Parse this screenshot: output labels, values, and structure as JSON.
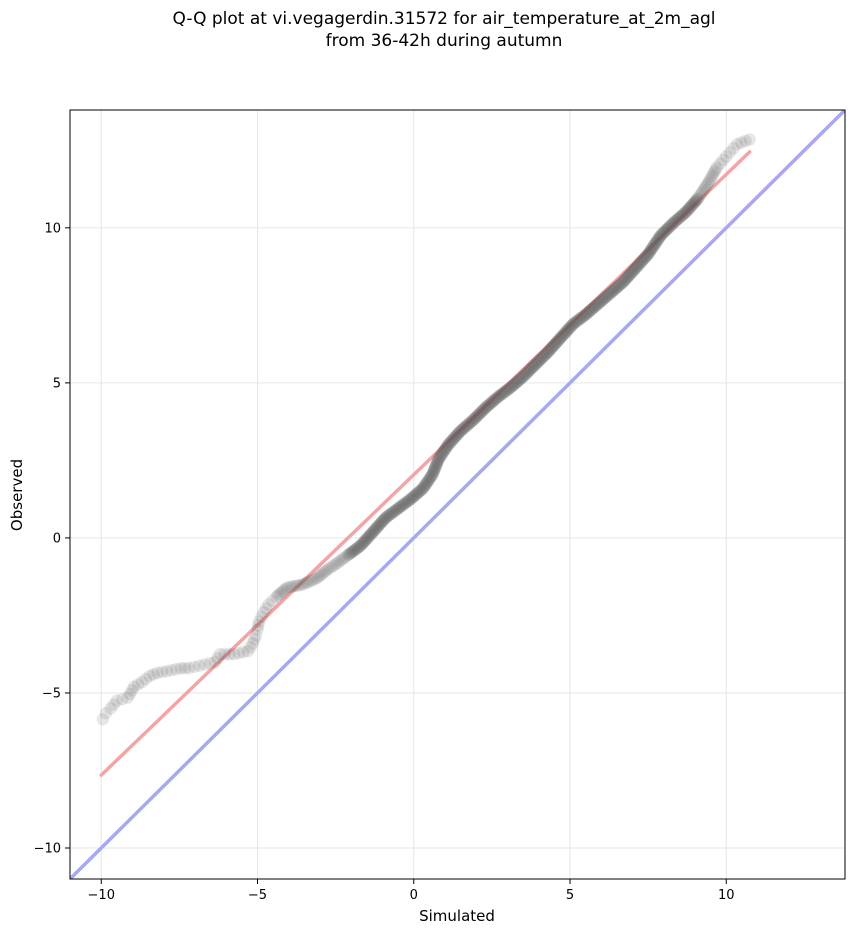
{
  "chart_data": {
    "type": "scatter",
    "title_lines": [
      "Q-Q plot at vi.vegagerdin.31572 for air_temperature_at_2m_agl",
      "from 36-42h during autumn"
    ],
    "xlabel": "Simulated",
    "ylabel": "Observed",
    "xlim": [
      -11,
      13.8
    ],
    "ylim": [
      -11,
      13.8
    ],
    "xticks": [
      {
        "value": -10,
        "label": "−10"
      },
      {
        "value": -5,
        "label": "−5"
      },
      {
        "value": 0,
        "label": "0"
      },
      {
        "value": 5,
        "label": "5"
      },
      {
        "value": 10,
        "label": "10"
      }
    ],
    "yticks": [
      {
        "value": -10,
        "label": "−10"
      },
      {
        "value": -5,
        "label": "−5"
      },
      {
        "value": 0,
        "label": "0"
      },
      {
        "value": 5,
        "label": "5"
      },
      {
        "value": 10,
        "label": "10"
      }
    ],
    "grid": true,
    "identity_line": {
      "from": [
        -11,
        -11
      ],
      "to": [
        13.8,
        13.8
      ],
      "color": "#a8a8f2"
    },
    "fit_line": {
      "from": [
        -10,
        -7.65
      ],
      "to": [
        10.75,
        12.45
      ],
      "color": "#f4a4a4"
    },
    "point_color": "#555555",
    "quantile_points": [
      [
        -9.95,
        -5.85
      ],
      [
        -9.85,
        -5.65
      ],
      [
        -9.7,
        -5.5
      ],
      [
        -9.5,
        -5.25
      ],
      [
        -9.15,
        -5.15
      ],
      [
        -8.95,
        -4.8
      ],
      [
        -8.7,
        -4.65
      ],
      [
        -8.45,
        -4.45
      ],
      [
        -8.2,
        -4.35
      ],
      [
        -7.9,
        -4.3
      ],
      [
        -7.45,
        -4.2
      ],
      [
        -7.2,
        -4.2
      ],
      [
        -6.35,
        -4.0
      ],
      [
        -6.2,
        -3.75
      ],
      [
        -5.75,
        -3.75
      ],
      [
        -5.3,
        -3.65
      ],
      [
        -5.15,
        -3.4
      ],
      [
        -5.05,
        -3.15
      ],
      [
        -5.0,
        -2.95
      ],
      [
        -4.95,
        -2.7
      ],
      [
        -4.8,
        -2.4
      ],
      [
        -4.65,
        -2.15
      ],
      [
        -4.4,
        -1.9
      ],
      [
        -4.05,
        -1.6
      ],
      [
        -3.55,
        -1.5
      ],
      [
        -3.1,
        -1.3
      ],
      [
        -2.8,
        -1.05
      ],
      [
        -2.5,
        -0.85
      ],
      [
        -2.1,
        -0.55
      ],
      [
        -1.7,
        -0.25
      ],
      [
        -1.3,
        0.2
      ],
      [
        -0.9,
        0.65
      ],
      [
        -0.5,
        0.95
      ],
      [
        -0.1,
        1.25
      ],
      [
        0.3,
        1.6
      ],
      [
        0.6,
        2.05
      ],
      [
        0.8,
        2.55
      ],
      [
        1.1,
        3.0
      ],
      [
        1.5,
        3.45
      ],
      [
        1.9,
        3.8
      ],
      [
        2.3,
        4.2
      ],
      [
        2.7,
        4.55
      ],
      [
        3.1,
        4.85
      ],
      [
        3.5,
        5.2
      ],
      [
        3.9,
        5.6
      ],
      [
        4.3,
        6.0
      ],
      [
        4.7,
        6.45
      ],
      [
        5.1,
        6.9
      ],
      [
        5.5,
        7.2
      ],
      [
        5.9,
        7.55
      ],
      [
        6.3,
        7.9
      ],
      [
        6.7,
        8.25
      ],
      [
        7.1,
        8.7
      ],
      [
        7.5,
        9.15
      ],
      [
        7.9,
        9.75
      ],
      [
        8.3,
        10.15
      ],
      [
        8.7,
        10.5
      ],
      [
        9.1,
        10.95
      ],
      [
        9.45,
        11.5
      ],
      [
        9.7,
        11.95
      ],
      [
        10.0,
        12.3
      ],
      [
        10.35,
        12.7
      ],
      [
        10.75,
        12.85
      ]
    ]
  }
}
